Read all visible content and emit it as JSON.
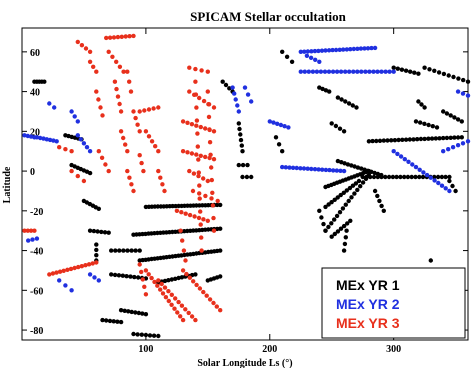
{
  "chart_data": {
    "type": "scatter",
    "title": "SPICAM Stellar occultation",
    "xlabel": "Solar Longitude Ls (°)",
    "ylabel": "Latitude",
    "xlim": [
      0,
      360
    ],
    "ylim": [
      -85,
      72
    ],
    "xticks": [
      100,
      200,
      300
    ],
    "yticks": [
      -80,
      -60,
      -40,
      -20,
      0,
      20,
      40,
      60
    ],
    "grid": false,
    "legend_position": "bottom-right",
    "series": [
      {
        "name": "MEx YR 1",
        "color": "#000000",
        "segments": [
          {
            "x0": 10,
            "y0": 45,
            "x1": 18,
            "y1": 45,
            "n": 5
          },
          {
            "x0": 35,
            "y0": 18,
            "x1": 48,
            "y1": 16,
            "n": 6
          },
          {
            "x0": 40,
            "y0": 3,
            "x1": 55,
            "y1": -1,
            "n": 7
          },
          {
            "x0": 50,
            "y0": -15,
            "x1": 62,
            "y1": -19,
            "n": 6
          },
          {
            "x0": 55,
            "y0": -30,
            "x1": 70,
            "y1": -31,
            "n": 6
          },
          {
            "x0": 60,
            "y0": -37,
            "x1": 60,
            "y1": -45,
            "n": 4
          },
          {
            "x0": 72,
            "y0": -40,
            "x1": 95,
            "y1": -40,
            "n": 8
          },
          {
            "x0": 72,
            "y0": -52,
            "x1": 100,
            "y1": -54,
            "n": 10
          },
          {
            "x0": 65,
            "y0": -75,
            "x1": 80,
            "y1": -76,
            "n": 6
          },
          {
            "x0": 80,
            "y0": -70,
            "x1": 100,
            "y1": -72,
            "n": 8
          },
          {
            "x0": 90,
            "y0": -82,
            "x1": 110,
            "y1": -83,
            "n": 7
          },
          {
            "x0": 90,
            "y0": -32,
            "x1": 160,
            "y1": -29,
            "n": 30
          },
          {
            "x0": 95,
            "y0": -45,
            "x1": 160,
            "y1": -40,
            "n": 28
          },
          {
            "x0": 100,
            "y0": -18,
            "x1": 160,
            "y1": -17,
            "n": 26
          },
          {
            "x0": 110,
            "y0": -56,
            "x1": 140,
            "y1": -52,
            "n": 12
          },
          {
            "x0": 150,
            "y0": -55,
            "x1": 160,
            "y1": -53,
            "n": 5
          },
          {
            "x0": 162,
            "y0": 45,
            "x1": 170,
            "y1": 40,
            "n": 4
          },
          {
            "x0": 175,
            "y0": 24,
            "x1": 178,
            "y1": 10,
            "n": 6
          },
          {
            "x0": 175,
            "y0": 3,
            "x1": 182,
            "y1": 3,
            "n": 3
          },
          {
            "x0": 178,
            "y0": -3,
            "x1": 185,
            "y1": -3,
            "n": 3
          },
          {
            "x0": 205,
            "y0": 17,
            "x1": 210,
            "y1": 10,
            "n": 3
          },
          {
            "x0": 210,
            "y0": 60,
            "x1": 218,
            "y1": 55,
            "n": 3
          },
          {
            "x0": 240,
            "y0": -20,
            "x1": 245,
            "y1": -30,
            "n": 4
          },
          {
            "x0": 240,
            "y0": 42,
            "x1": 248,
            "y1": 40,
            "n": 4
          },
          {
            "x0": 255,
            "y0": 37,
            "x1": 270,
            "y1": 32,
            "n": 6
          },
          {
            "x0": 250,
            "y0": 24,
            "x1": 260,
            "y1": 20,
            "n": 4
          },
          {
            "x0": 245,
            "y0": -8,
            "x1": 280,
            "y1": 0,
            "n": 16
          },
          {
            "x0": 245,
            "y0": -30,
            "x1": 280,
            "y1": -2,
            "n": 16
          },
          {
            "x0": 245,
            "y0": -18,
            "x1": 272,
            "y1": -5,
            "n": 12
          },
          {
            "x0": 250,
            "y0": -33,
            "x1": 265,
            "y1": -25,
            "n": 7
          },
          {
            "x0": 260,
            "y0": -40,
            "x1": 262,
            "y1": -30,
            "n": 4
          },
          {
            "x0": 255,
            "y0": 5,
            "x1": 290,
            "y1": -2,
            "n": 14
          },
          {
            "x0": 285,
            "y0": -10,
            "x1": 292,
            "y1": -20,
            "n": 5
          },
          {
            "x0": 280,
            "y0": 15,
            "x1": 355,
            "y1": 17,
            "n": 26
          },
          {
            "x0": 275,
            "y0": -3,
            "x1": 345,
            "y1": -3,
            "n": 24
          },
          {
            "x0": 300,
            "y0": 52,
            "x1": 320,
            "y1": 49,
            "n": 7
          },
          {
            "x0": 325,
            "y0": 52,
            "x1": 360,
            "y1": 45,
            "n": 10
          },
          {
            "x0": 318,
            "y0": 25,
            "x1": 335,
            "y1": 22,
            "n": 6
          },
          {
            "x0": 340,
            "y0": 30,
            "x1": 355,
            "y1": 25,
            "n": 6
          },
          {
            "x0": 320,
            "y0": 35,
            "x1": 325,
            "y1": 32,
            "n": 3
          },
          {
            "x0": 330,
            "y0": -65,
            "x1": 330,
            "y1": -45,
            "n": 3
          },
          {
            "x0": 345,
            "y0": -5,
            "x1": 350,
            "y1": -10,
            "n": 3
          }
        ]
      },
      {
        "name": "MEx YR 2",
        "color": "#2030e0",
        "segments": [
          {
            "x0": 2,
            "y0": 18,
            "x1": 10,
            "y1": 17,
            "n": 4
          },
          {
            "x0": 12,
            "y0": 17,
            "x1": 28,
            "y1": 15,
            "n": 7
          },
          {
            "x0": 5,
            "y0": -35,
            "x1": 12,
            "y1": -34,
            "n": 3
          },
          {
            "x0": 22,
            "y0": 34,
            "x1": 26,
            "y1": 32,
            "n": 2
          },
          {
            "x0": 30,
            "y0": -55,
            "x1": 40,
            "y1": -60,
            "n": 3
          },
          {
            "x0": 40,
            "y0": 30,
            "x1": 45,
            "y1": 25,
            "n": 3
          },
          {
            "x0": 45,
            "y0": 18,
            "x1": 55,
            "y1": 10,
            "n": 5
          },
          {
            "x0": 55,
            "y0": -52,
            "x1": 62,
            "y1": -55,
            "n": 3
          },
          {
            "x0": 170,
            "y0": 42,
            "x1": 175,
            "y1": 30,
            "n": 5
          },
          {
            "x0": 180,
            "y0": 42,
            "x1": 185,
            "y1": 35,
            "n": 3
          },
          {
            "x0": 200,
            "y0": 25,
            "x1": 215,
            "y1": 22,
            "n": 6
          },
          {
            "x0": 210,
            "y0": 2,
            "x1": 260,
            "y1": 0,
            "n": 18
          },
          {
            "x0": 225,
            "y0": 60,
            "x1": 285,
            "y1": 62,
            "n": 22
          },
          {
            "x0": 225,
            "y0": 50,
            "x1": 300,
            "y1": 50,
            "n": 24
          },
          {
            "x0": 230,
            "y0": 58,
            "x1": 240,
            "y1": 55,
            "n": 4
          },
          {
            "x0": 300,
            "y0": 10,
            "x1": 345,
            "y1": -10,
            "n": 16
          },
          {
            "x0": 340,
            "y0": 10,
            "x1": 360,
            "y1": 15,
            "n": 6
          },
          {
            "x0": 352,
            "y0": 40,
            "x1": 360,
            "y1": 38,
            "n": 3
          }
        ]
      },
      {
        "name": "MEx YR 3",
        "color": "#e8301c",
        "segments": [
          {
            "x0": 2,
            "y0": -30,
            "x1": 10,
            "y1": -30,
            "n": 4
          },
          {
            "x0": 22,
            "y0": -52,
            "x1": 60,
            "y1": -46,
            "n": 14
          },
          {
            "x0": 30,
            "y0": 12,
            "x1": 40,
            "y1": 10,
            "n": 3
          },
          {
            "x0": 40,
            "y0": 0,
            "x1": 50,
            "y1": -5,
            "n": 3
          },
          {
            "x0": 45,
            "y0": 65,
            "x1": 55,
            "y1": 60,
            "n": 4
          },
          {
            "x0": 55,
            "y0": 55,
            "x1": 60,
            "y1": 50,
            "n": 3
          },
          {
            "x0": 60,
            "y0": 40,
            "x1": 65,
            "y1": 28,
            "n": 4
          },
          {
            "x0": 62,
            "y0": 10,
            "x1": 70,
            "y1": 0,
            "n": 4
          },
          {
            "x0": 68,
            "y0": 67,
            "x1": 90,
            "y1": 68,
            "n": 8
          },
          {
            "x0": 70,
            "y0": 60,
            "x1": 82,
            "y1": 50,
            "n": 5
          },
          {
            "x0": 75,
            "y0": 45,
            "x1": 80,
            "y1": 30,
            "n": 5
          },
          {
            "x0": 80,
            "y0": 20,
            "x1": 85,
            "y1": 10,
            "n": 4
          },
          {
            "x0": 85,
            "y0": 0,
            "x1": 90,
            "y1": -10,
            "n": 4
          },
          {
            "x0": 85,
            "y0": 50,
            "x1": 88,
            "y1": 40,
            "n": 3
          },
          {
            "x0": 90,
            "y0": 30,
            "x1": 95,
            "y1": 20,
            "n": 4
          },
          {
            "x0": 95,
            "y0": 8,
            "x1": 98,
            "y1": 0,
            "n": 3
          },
          {
            "x0": 95,
            "y0": 30,
            "x1": 110,
            "y1": 32,
            "n": 5
          },
          {
            "x0": 100,
            "y0": 20,
            "x1": 110,
            "y1": 10,
            "n": 5
          },
          {
            "x0": 110,
            "y0": 0,
            "x1": 115,
            "y1": -10,
            "n": 4
          },
          {
            "x0": 95,
            "y0": -47,
            "x1": 100,
            "y1": -62,
            "n": 5
          },
          {
            "x0": 100,
            "y0": -50,
            "x1": 130,
            "y1": -75,
            "n": 14
          },
          {
            "x0": 110,
            "y0": -55,
            "x1": 140,
            "y1": -75,
            "n": 12
          },
          {
            "x0": 130,
            "y0": -50,
            "x1": 160,
            "y1": -70,
            "n": 12
          },
          {
            "x0": 135,
            "y0": 52,
            "x1": 150,
            "y1": 50,
            "n": 4
          },
          {
            "x0": 135,
            "y0": 40,
            "x1": 155,
            "y1": 32,
            "n": 6
          },
          {
            "x0": 130,
            "y0": 25,
            "x1": 155,
            "y1": 20,
            "n": 8
          },
          {
            "x0": 130,
            "y0": 10,
            "x1": 155,
            "y1": 6,
            "n": 8
          },
          {
            "x0": 135,
            "y0": 0,
            "x1": 150,
            "y1": -5,
            "n": 5
          },
          {
            "x0": 125,
            "y0": -20,
            "x1": 150,
            "y1": -25,
            "n": 8
          },
          {
            "x0": 138,
            "y0": -10,
            "x1": 158,
            "y1": -15,
            "n": 5
          },
          {
            "x0": 140,
            "y0": 45,
            "x1": 145,
            "y1": -40,
            "n": 14
          },
          {
            "x0": 150,
            "y0": 40,
            "x1": 155,
            "y1": -30,
            "n": 12
          },
          {
            "x0": 128,
            "y0": -30,
            "x1": 132,
            "y1": -45,
            "n": 4
          }
        ]
      }
    ]
  }
}
